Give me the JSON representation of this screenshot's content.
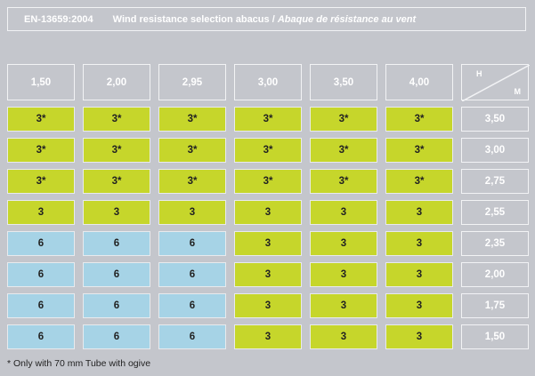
{
  "header": {
    "standard": "EN-13659:2004",
    "title_en": "Wind resistance selection abacus /",
    "title_fr": "Abaque de résistance au vent"
  },
  "colors": {
    "green": "#c6d62b",
    "blue": "#a6d3e6",
    "background": "#c4c6cc"
  },
  "table": {
    "column_headers": [
      "1,50",
      "2,00",
      "2,95",
      "3,00",
      "3,50",
      "4,00"
    ],
    "axis_corner": {
      "h": "H",
      "m": "M"
    },
    "rows": [
      {
        "m": "3,50",
        "cells": [
          {
            "v": "3*",
            "c": "green"
          },
          {
            "v": "3*",
            "c": "green"
          },
          {
            "v": "3*",
            "c": "green"
          },
          {
            "v": "3*",
            "c": "green"
          },
          {
            "v": "3*",
            "c": "green"
          },
          {
            "v": "3*",
            "c": "green"
          }
        ]
      },
      {
        "m": "3,00",
        "cells": [
          {
            "v": "3*",
            "c": "green"
          },
          {
            "v": "3*",
            "c": "green"
          },
          {
            "v": "3*",
            "c": "green"
          },
          {
            "v": "3*",
            "c": "green"
          },
          {
            "v": "3*",
            "c": "green"
          },
          {
            "v": "3*",
            "c": "green"
          }
        ]
      },
      {
        "m": "2,75",
        "cells": [
          {
            "v": "3*",
            "c": "green"
          },
          {
            "v": "3*",
            "c": "green"
          },
          {
            "v": "3*",
            "c": "green"
          },
          {
            "v": "3*",
            "c": "green"
          },
          {
            "v": "3*",
            "c": "green"
          },
          {
            "v": "3*",
            "c": "green"
          }
        ]
      },
      {
        "m": "2,55",
        "cells": [
          {
            "v": "3",
            "c": "green"
          },
          {
            "v": "3",
            "c": "green"
          },
          {
            "v": "3",
            "c": "green"
          },
          {
            "v": "3",
            "c": "green"
          },
          {
            "v": "3",
            "c": "green"
          },
          {
            "v": "3",
            "c": "green"
          }
        ]
      },
      {
        "m": "2,35",
        "cells": [
          {
            "v": "6",
            "c": "blue"
          },
          {
            "v": "6",
            "c": "blue"
          },
          {
            "v": "6",
            "c": "blue"
          },
          {
            "v": "3",
            "c": "green"
          },
          {
            "v": "3",
            "c": "green"
          },
          {
            "v": "3",
            "c": "green"
          }
        ]
      },
      {
        "m": "2,00",
        "cells": [
          {
            "v": "6",
            "c": "blue"
          },
          {
            "v": "6",
            "c": "blue"
          },
          {
            "v": "6",
            "c": "blue"
          },
          {
            "v": "3",
            "c": "green"
          },
          {
            "v": "3",
            "c": "green"
          },
          {
            "v": "3",
            "c": "green"
          }
        ]
      },
      {
        "m": "1,75",
        "cells": [
          {
            "v": "6",
            "c": "blue"
          },
          {
            "v": "6",
            "c": "blue"
          },
          {
            "v": "6",
            "c": "blue"
          },
          {
            "v": "3",
            "c": "green"
          },
          {
            "v": "3",
            "c": "green"
          },
          {
            "v": "3",
            "c": "green"
          }
        ]
      },
      {
        "m": "1,50",
        "cells": [
          {
            "v": "6",
            "c": "blue"
          },
          {
            "v": "6",
            "c": "blue"
          },
          {
            "v": "6",
            "c": "blue"
          },
          {
            "v": "3",
            "c": "green"
          },
          {
            "v": "3",
            "c": "green"
          },
          {
            "v": "3",
            "c": "green"
          }
        ]
      }
    ]
  },
  "footnote": "* Only with 70 mm Tube with ogive"
}
